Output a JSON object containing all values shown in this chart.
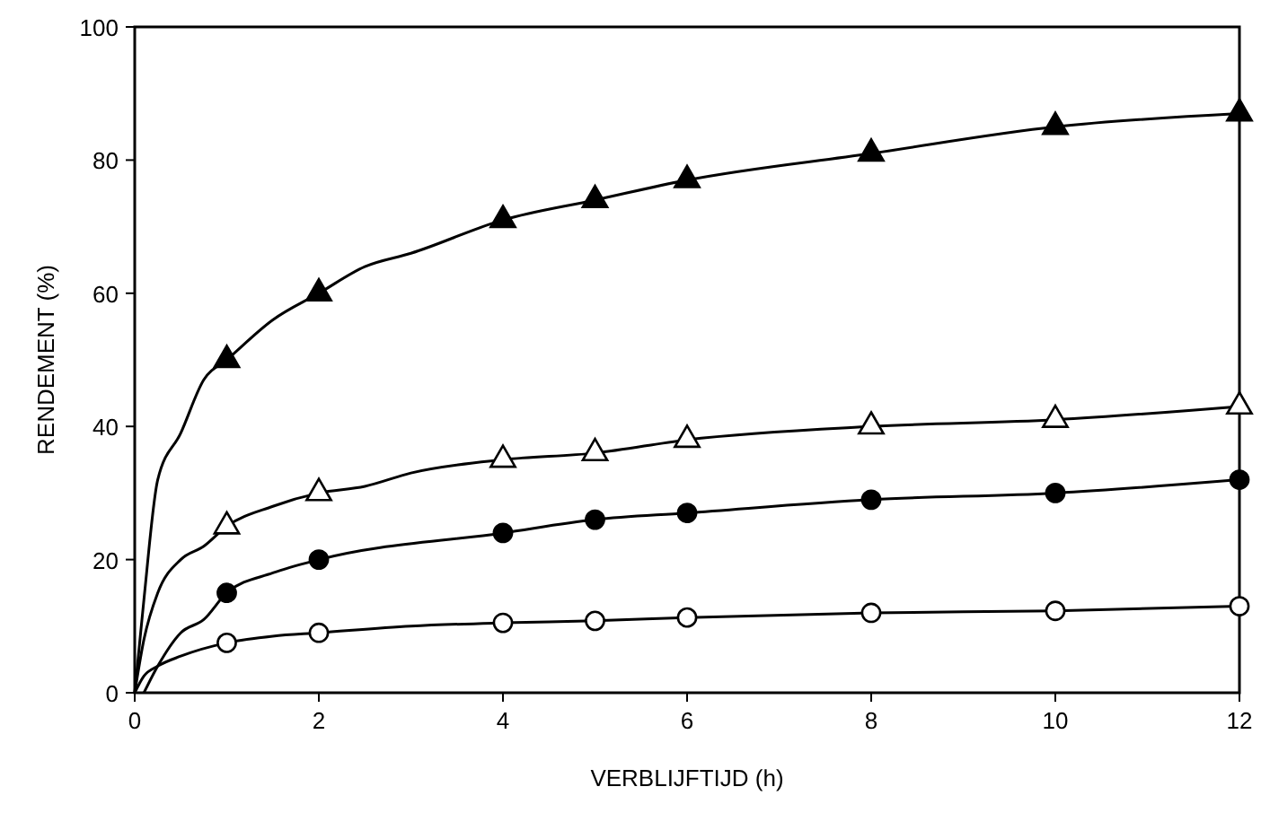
{
  "chart_data": {
    "type": "line",
    "xlabel": "VERBLIJFTIJD (h)",
    "ylabel": "RENDEMENT (%)",
    "xlim": [
      0,
      12
    ],
    "ylim": [
      0,
      100
    ],
    "xticks": [
      0,
      2,
      4,
      6,
      8,
      10,
      12
    ],
    "yticks": [
      0,
      20,
      40,
      60,
      80,
      100
    ],
    "grid": false,
    "line_style": "solid",
    "series": [
      {
        "marker": "none",
        "color": "#000000",
        "x": [
          0,
          0.1,
          0.25,
          0.5,
          0.75,
          1,
          1.5,
          2,
          2.5,
          3,
          4,
          5,
          6,
          8,
          10,
          12
        ],
        "values": [
          0,
          14,
          32,
          39,
          47,
          50,
          56,
          60,
          64,
          66,
          71,
          74,
          77,
          81,
          85,
          87
        ]
      },
      {
        "marker": "none",
        "color": "#000000",
        "x": [
          0,
          0.1,
          0.25,
          0.5,
          0.75,
          1,
          1.5,
          2,
          2.5,
          3,
          4,
          5,
          6,
          8,
          10,
          12
        ],
        "values": [
          0,
          8,
          15,
          20,
          22,
          25,
          28,
          30,
          31,
          33,
          35,
          36,
          38,
          40,
          41,
          43
        ]
      },
      {
        "marker": "none",
        "color": "#000000",
        "x": [
          0.1,
          0.25,
          0.5,
          0.75,
          1,
          1.5,
          2,
          4,
          5,
          6,
          8,
          10,
          12
        ],
        "values": [
          0,
          4,
          9,
          11,
          15,
          18,
          20,
          24,
          26,
          27,
          29,
          30,
          32
        ]
      },
      {
        "marker": "none",
        "color": "#000000",
        "x": [
          0,
          0.1,
          0.25,
          0.5,
          1,
          1.5,
          2,
          3,
          4,
          5,
          6,
          8,
          10,
          12
        ],
        "values": [
          0,
          2.5,
          4,
          5.5,
          7.5,
          8.5,
          9,
          10,
          10.5,
          10.8,
          11.3,
          12,
          12.3,
          13
        ]
      },
      {
        "type": "scatter",
        "marker": "triangle",
        "color": "#000000",
        "x": [
          1,
          2,
          4,
          5,
          6,
          8,
          10,
          12
        ],
        "values": [
          50,
          60,
          71,
          74,
          77,
          81,
          85,
          87
        ]
      },
      {
        "type": "scatter",
        "marker": "triangle",
        "color": "#ffffff",
        "x": [
          1,
          2,
          4,
          5,
          6,
          8,
          10,
          12
        ],
        "values": [
          25,
          30,
          35,
          36,
          38,
          40,
          41,
          43
        ]
      },
      {
        "type": "scatter",
        "marker": "circle",
        "color": "#000000",
        "x": [
          1,
          2,
          4,
          5,
          6,
          8,
          10,
          12
        ],
        "values": [
          15,
          20,
          24,
          26,
          27,
          29,
          30,
          32
        ]
      },
      {
        "type": "scatter",
        "marker": "circle",
        "color": "#ffffff",
        "x": [
          1,
          2,
          4,
          5,
          6,
          8,
          10,
          12
        ],
        "values": [
          7.5,
          9,
          10.5,
          10.8,
          11.3,
          12,
          12.3,
          13
        ]
      }
    ]
  }
}
